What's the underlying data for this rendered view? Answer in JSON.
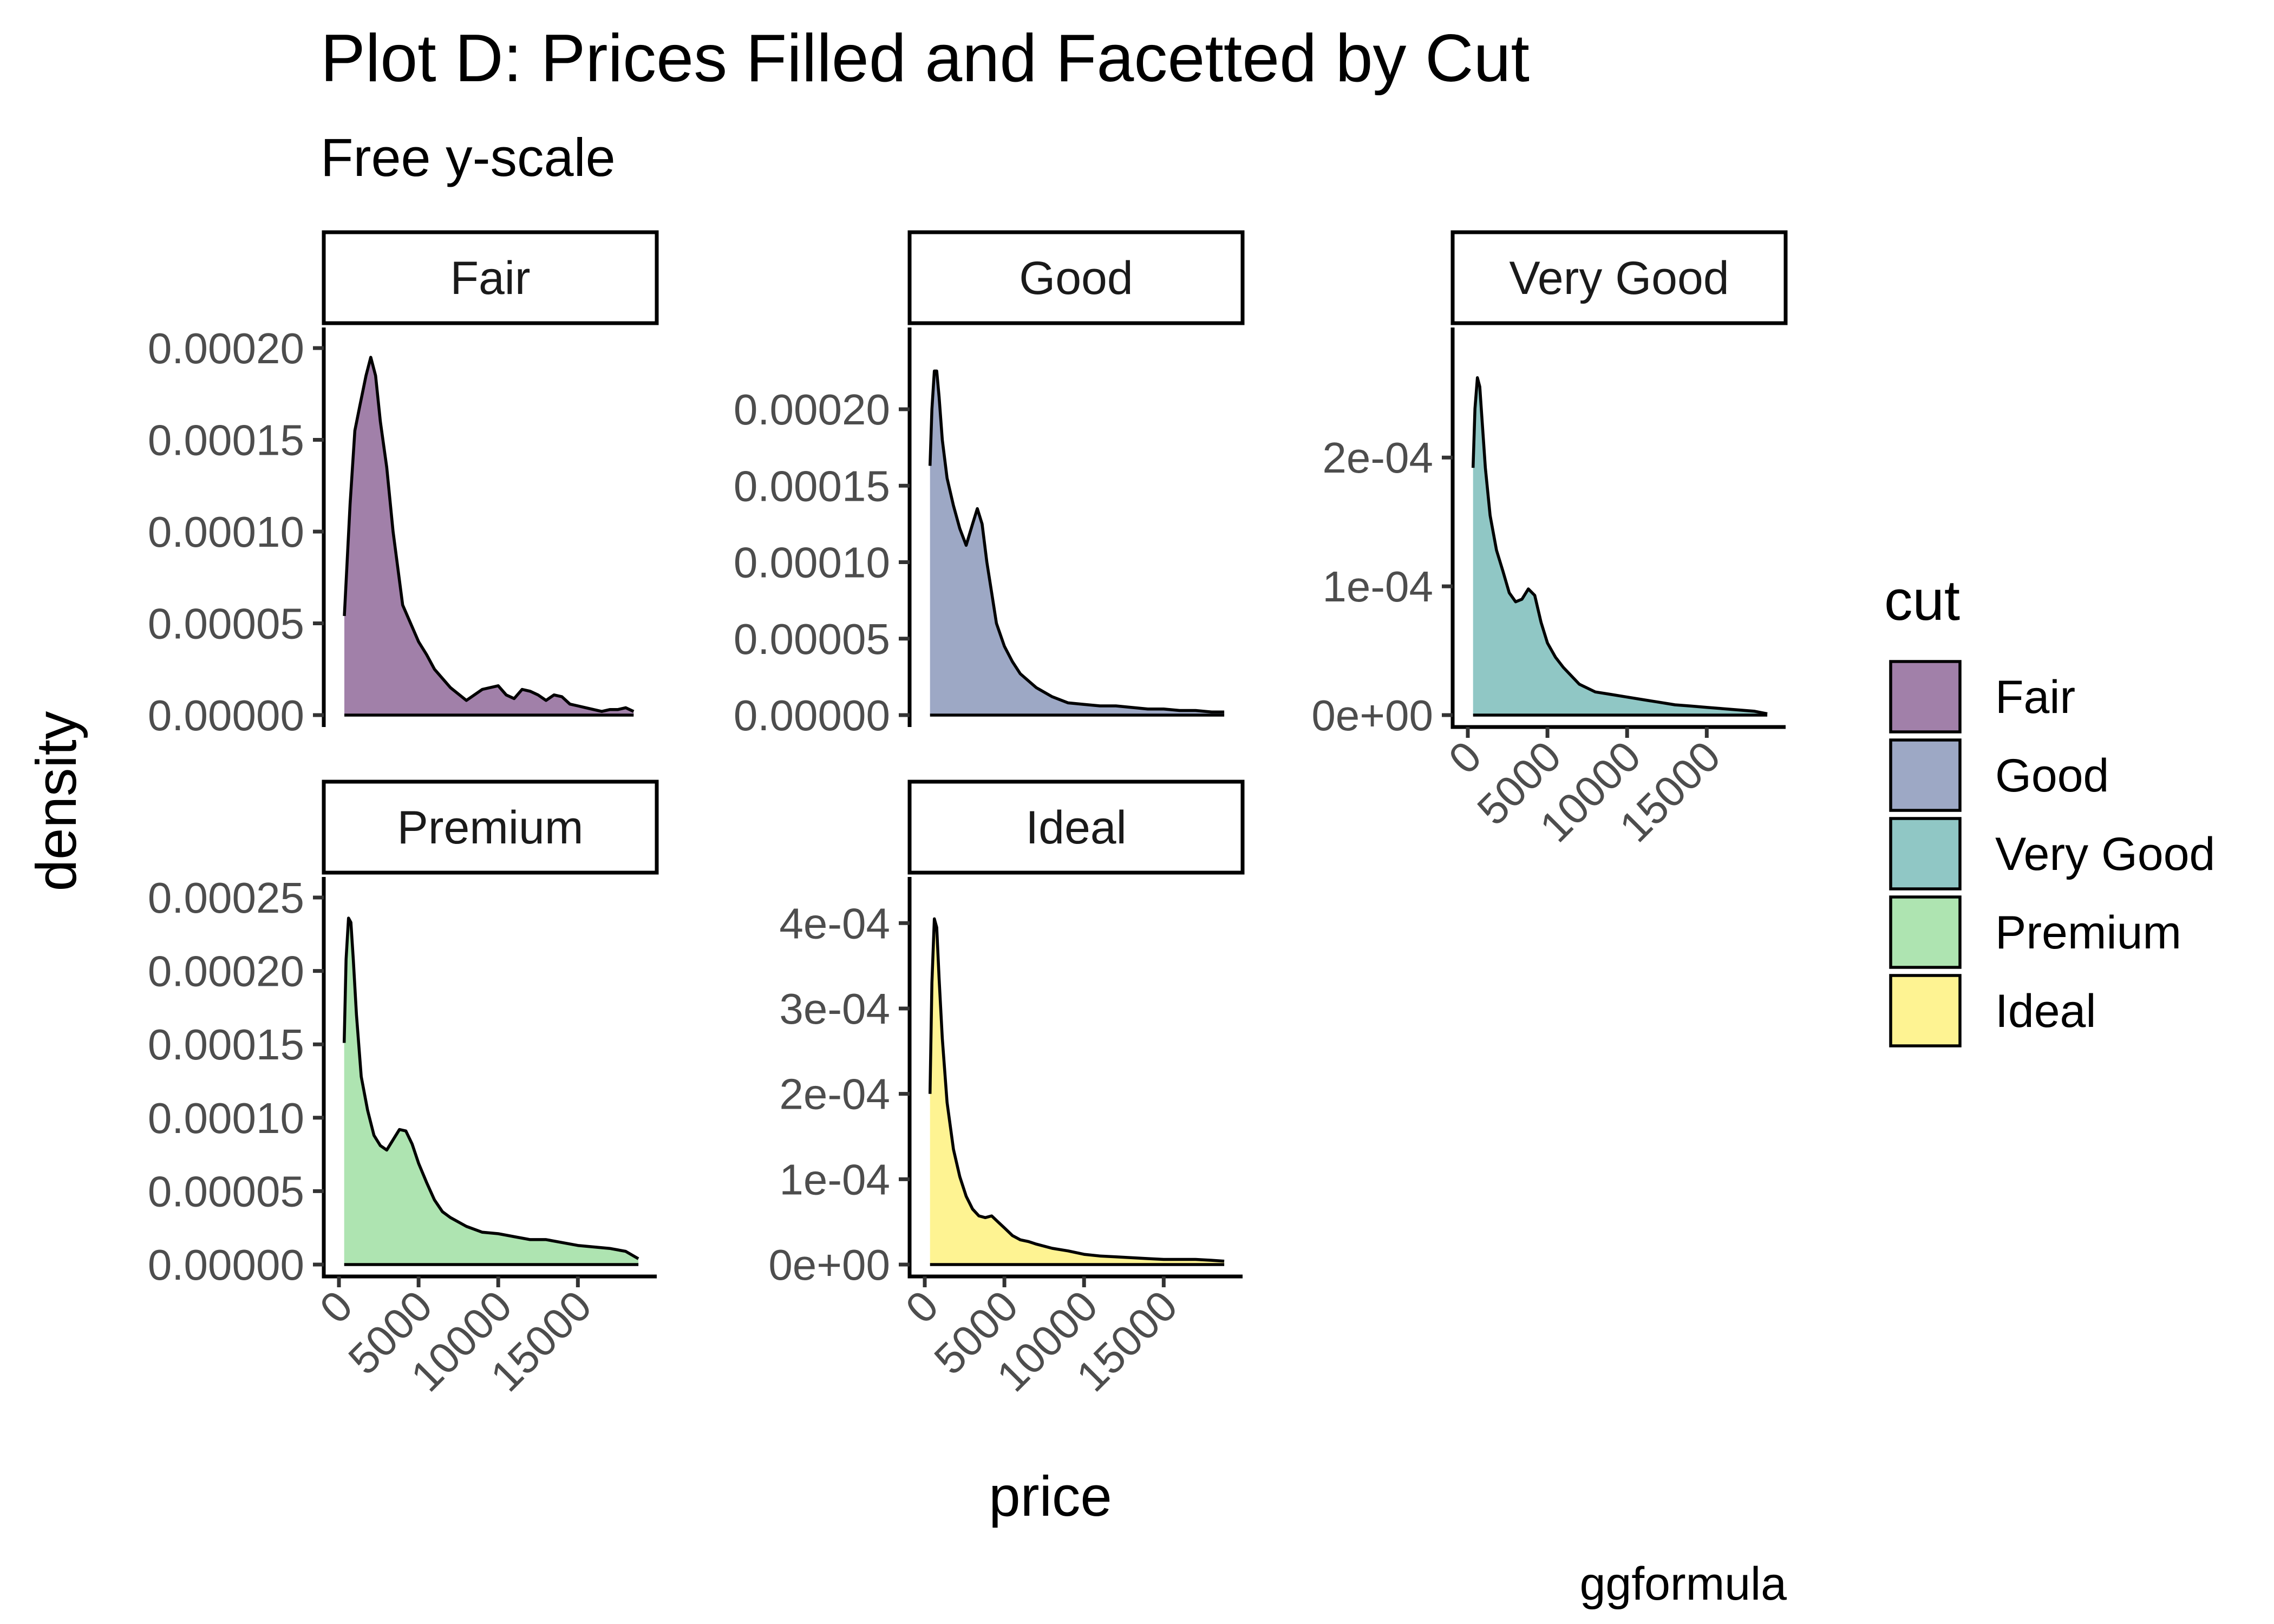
{
  "chart_data": {
    "type": "area",
    "title": "Plot D: Prices Filled and Facetted by Cut",
    "subtitle": "Free y-scale",
    "caption": "ggformula",
    "xlabel": "price",
    "ylabel": "density",
    "legend": {
      "title": "cut",
      "position": "right"
    },
    "grid": false,
    "xlim": [
      0,
      19000
    ],
    "x_ticks": [
      0,
      5000,
      10000,
      15000
    ],
    "x_tick_labels": [
      "0",
      "5000",
      "10000",
      "15000"
    ],
    "panels": [
      {
        "name": "Fair",
        "color": "#440154",
        "ylim": [
          0,
          0.0002
        ],
        "y_ticks": [
          0,
          5e-05,
          0.0001,
          0.00015,
          0.0002
        ],
        "y_tick_labels": [
          "0.00000",
          "0.00005",
          "0.00010",
          "0.00015",
          "0.00020"
        ],
        "x": [
          340,
          700,
          1000,
          1300,
          1700,
          2000,
          2300,
          2600,
          3000,
          3400,
          4000,
          4500,
          5000,
          5500,
          6000,
          7000,
          8000,
          9000,
          10000,
          10500,
          11000,
          11500,
          12000,
          12500,
          13000,
          13500,
          14000,
          14500,
          15000,
          15500,
          16000,
          16500,
          17000,
          17500,
          18000,
          18500
        ],
        "y": [
          5.4e-05,
          0.000115,
          0.000155,
          0.000168,
          0.000185,
          0.000195,
          0.000185,
          0.00016,
          0.000135,
          0.0001,
          6e-05,
          5e-05,
          4e-05,
          3.3e-05,
          2.5e-05,
          1.5e-05,
          8e-06,
          1.4e-05,
          1.6e-05,
          1.1e-05,
          9e-06,
          1.4e-05,
          1.3e-05,
          1.1e-05,
          8e-06,
          1.1e-05,
          1e-05,
          6e-06,
          5e-06,
          4e-06,
          3e-06,
          2e-06,
          3e-06,
          3e-06,
          4e-06,
          2e-06
        ]
      },
      {
        "name": "Good",
        "color": "#3b528b",
        "ylim": [
          0,
          0.00024
        ],
        "y_ticks": [
          0,
          5e-05,
          0.0001,
          0.00015,
          0.0002
        ],
        "y_tick_labels": [
          "0.00000",
          "0.00005",
          "0.00010",
          "0.00015",
          "0.00020"
        ],
        "x": [
          330,
          450,
          600,
          750,
          900,
          1100,
          1400,
          1800,
          2200,
          2600,
          3000,
          3300,
          3600,
          3900,
          4200,
          4500,
          5000,
          5500,
          6000,
          7000,
          8000,
          9000,
          10000,
          11000,
          12000,
          13000,
          14000,
          15000,
          16000,
          17000,
          18000,
          18800
        ],
        "y": [
          0.000163,
          0.0002,
          0.000225,
          0.000225,
          0.000208,
          0.00018,
          0.000155,
          0.000137,
          0.000122,
          0.000111,
          0.000125,
          0.000135,
          0.000125,
          0.0001,
          8e-05,
          6e-05,
          4.5e-05,
          3.5e-05,
          2.7e-05,
          1.8e-05,
          1.2e-05,
          8e-06,
          7e-06,
          6e-06,
          6e-06,
          5e-06,
          4e-06,
          4e-06,
          3e-06,
          3e-06,
          2e-06,
          2e-06
        ]
      },
      {
        "name": "Very Good",
        "color": "#21908c",
        "ylim": [
          0,
          0.000285
        ],
        "y_ticks": [
          0,
          0.0001,
          0.0002
        ],
        "y_tick_labels": [
          "0e+00",
          "1e-04",
          "2e-04"
        ],
        "x": [
          330,
          450,
          600,
          750,
          900,
          1100,
          1400,
          1800,
          2200,
          2600,
          3000,
          3400,
          3800,
          4200,
          4600,
          5000,
          5500,
          6000,
          7000,
          8000,
          9000,
          10000,
          11000,
          12000,
          13000,
          14000,
          15000,
          16000,
          17000,
          18000,
          18800
        ],
        "y": [
          0.000192,
          0.000238,
          0.000262,
          0.000255,
          0.000228,
          0.000192,
          0.000155,
          0.000128,
          0.000112,
          9.5e-05,
          8.8e-05,
          9e-05,
          9.8e-05,
          9.3e-05,
          7.2e-05,
          5.6e-05,
          4.5e-05,
          3.7e-05,
          2.4e-05,
          1.8e-05,
          1.6e-05,
          1.4e-05,
          1.2e-05,
          1e-05,
          8e-06,
          7e-06,
          6e-06,
          5e-06,
          4e-06,
          3e-06,
          1e-06
        ]
      },
      {
        "name": "Premium",
        "color": "#5dc963",
        "ylim": [
          0,
          0.00025
        ],
        "y_ticks": [
          0,
          5e-05,
          0.0001,
          0.00015,
          0.0002,
          0.00025
        ],
        "y_tick_labels": [
          "0.00000",
          "0.00005",
          "0.00010",
          "0.00015",
          "0.00020",
          "0.00025"
        ],
        "x": [
          330,
          450,
          600,
          750,
          900,
          1100,
          1400,
          1800,
          2200,
          2600,
          3000,
          3400,
          3800,
          4200,
          4600,
          5000,
          5500,
          6000,
          6500,
          7000,
          8000,
          9000,
          10000,
          11000,
          12000,
          13000,
          14000,
          15000,
          16000,
          17000,
          18000,
          18800
        ],
        "y": [
          0.000151,
          0.000208,
          0.000236,
          0.000233,
          0.000208,
          0.00017,
          0.000128,
          0.000105,
          8.8e-05,
          8.1e-05,
          7.8e-05,
          8.5e-05,
          9.2e-05,
          9.1e-05,
          8.2e-05,
          6.9e-05,
          5.6e-05,
          4.4e-05,
          3.6e-05,
          3.2e-05,
          2.6e-05,
          2.2e-05,
          2.1e-05,
          1.9e-05,
          1.7e-05,
          1.7e-05,
          1.5e-05,
          1.3e-05,
          1.2e-05,
          1.1e-05,
          9e-06,
          4e-06
        ]
      },
      {
        "name": "Ideal",
        "color": "#fde725",
        "ylim": [
          0,
          0.00043
        ],
        "y_ticks": [
          0,
          0.0001,
          0.0002,
          0.0003,
          0.0004
        ],
        "y_tick_labels": [
          "0e+00",
          "1e-04",
          "2e-04",
          "3e-04",
          "4e-04"
        ],
        "x": [
          330,
          450,
          600,
          750,
          900,
          1100,
          1400,
          1800,
          2200,
          2600,
          3000,
          3400,
          3800,
          4200,
          4600,
          5000,
          5500,
          6000,
          6500,
          7000,
          8000,
          9000,
          10000,
          11000,
          12000,
          13000,
          14000,
          15000,
          16000,
          17000,
          18000,
          18800
        ],
        "y": [
          0.0002,
          0.00033,
          0.000405,
          0.000395,
          0.000335,
          0.000265,
          0.00019,
          0.000135,
          0.000103,
          8e-05,
          6.5e-05,
          5.7e-05,
          5.5e-05,
          5.7e-05,
          5e-05,
          4.3e-05,
          3.4e-05,
          2.9e-05,
          2.7e-05,
          2.4e-05,
          1.9e-05,
          1.6e-05,
          1.2e-05,
          1e-05,
          9e-06,
          8e-06,
          7e-06,
          6e-06,
          6e-06,
          6e-06,
          5e-06,
          4e-06
        ]
      }
    ]
  }
}
